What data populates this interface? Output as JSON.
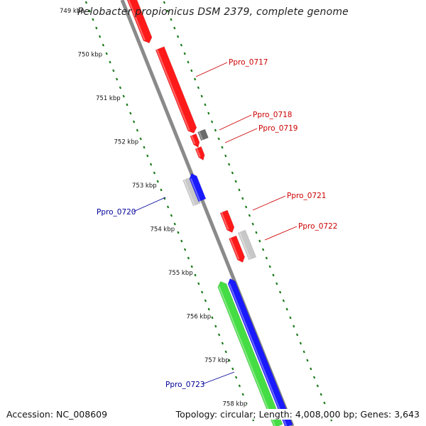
{
  "title": "Pelobacter propionicus DSM 2379, complete genome",
  "footer": {
    "accession": "Accession: NC_008609",
    "summary": "Topology: circular; Length: 4,008,000 bp; Genes: 3,643"
  },
  "colors": {
    "backbone": "#8a8a8a",
    "tick_dots": "#1a7a1a",
    "red_gene": "#ff1a1a",
    "blue_gene": "#1a1aff",
    "green_gene": "#44dd44",
    "grey_gene": "#c8c8c8",
    "dark_gene": "#6a6a6a",
    "label_red": "#cc0000",
    "label_blue": "#000099"
  },
  "ticks": [
    "749 kbp",
    "750 kbp",
    "751 kbp",
    "752 kbp",
    "753 kbp",
    "754 kbp",
    "755 kbp",
    "756 kbp",
    "757 kbp",
    "758 kbp"
  ],
  "gene_labels": [
    {
      "text": "Ppro_0717",
      "color": "red"
    },
    {
      "text": "Ppro_0718",
      "color": "red"
    },
    {
      "text": "Ppro_0719",
      "color": "red"
    },
    {
      "text": "Ppro_0720",
      "color": "blue"
    },
    {
      "text": "Ppro_0721",
      "color": "red"
    },
    {
      "text": "Ppro_0722",
      "color": "red"
    },
    {
      "text": "Ppro_0723",
      "color": "blue"
    }
  ]
}
